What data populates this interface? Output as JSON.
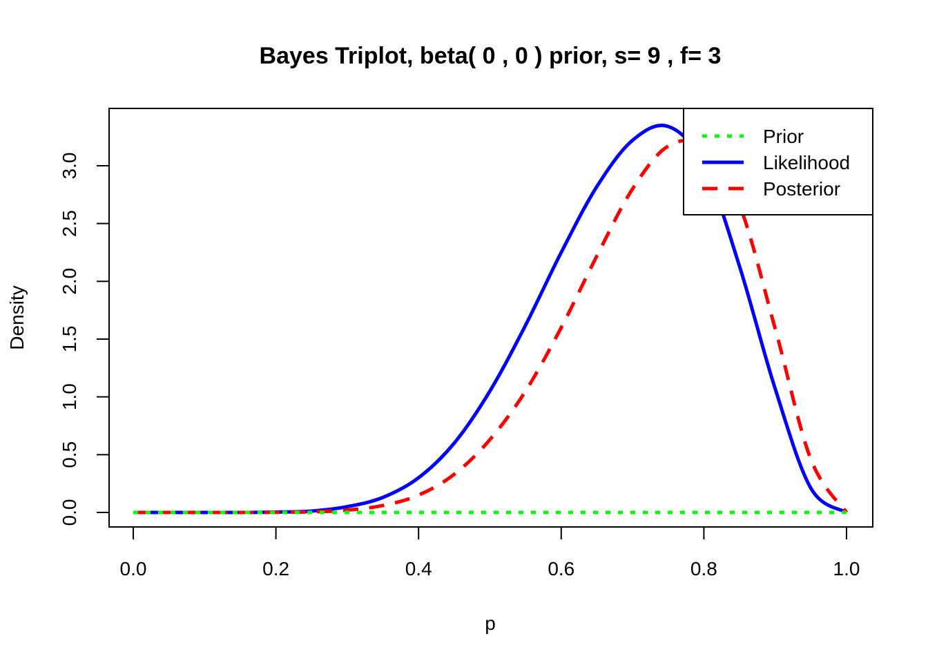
{
  "chart_data": {
    "type": "line",
    "title": "Bayes Triplot, beta( 0 , 0 ) prior, s= 9 , f= 3",
    "xlabel": "p",
    "ylabel": "Density",
    "xlim": [
      0.0,
      1.0
    ],
    "ylim": [
      0.0,
      3.35
    ],
    "x_ticks": [
      "0.0",
      "0.2",
      "0.4",
      "0.6",
      "0.8",
      "1.0"
    ],
    "y_ticks": [
      "0.0",
      "0.5",
      "1.0",
      "1.5",
      "2.0",
      "2.5",
      "3.0"
    ],
    "grid": false,
    "legend_position": "top-right",
    "x": [
      0.0,
      0.05,
      0.1,
      0.15,
      0.2,
      0.25,
      0.3,
      0.35,
      0.4,
      0.45,
      0.5,
      0.55,
      0.6,
      0.65,
      0.7,
      0.75,
      0.8,
      0.85,
      0.9,
      0.95,
      1.0
    ],
    "series": [
      {
        "name": "Prior",
        "color": "#00ff00",
        "style": "dotted",
        "values": [
          0,
          0,
          0,
          0,
          0,
          0,
          0,
          0,
          0,
          0,
          0,
          0,
          0,
          0,
          0,
          0,
          0,
          0,
          0,
          0,
          0
        ]
      },
      {
        "name": "Likelihood",
        "color": "#0000ff",
        "style": "solid",
        "values": [
          0.0,
          0.0,
          0.0,
          0.0,
          0.003,
          0.012,
          0.05,
          0.13,
          0.3,
          0.6,
          1.05,
          1.62,
          2.25,
          2.82,
          3.22,
          3.34,
          3.01,
          2.13,
          1.07,
          0.21,
          0.0
        ]
      },
      {
        "name": "Posterior",
        "color": "#ff0000",
        "style": "dashed",
        "values": [
          0.0,
          0.0,
          0.0,
          0.0,
          0.001,
          0.005,
          0.02,
          0.06,
          0.15,
          0.33,
          0.63,
          1.05,
          1.6,
          2.22,
          2.8,
          3.17,
          3.16,
          2.66,
          1.59,
          0.46,
          0.0
        ]
      }
    ]
  }
}
